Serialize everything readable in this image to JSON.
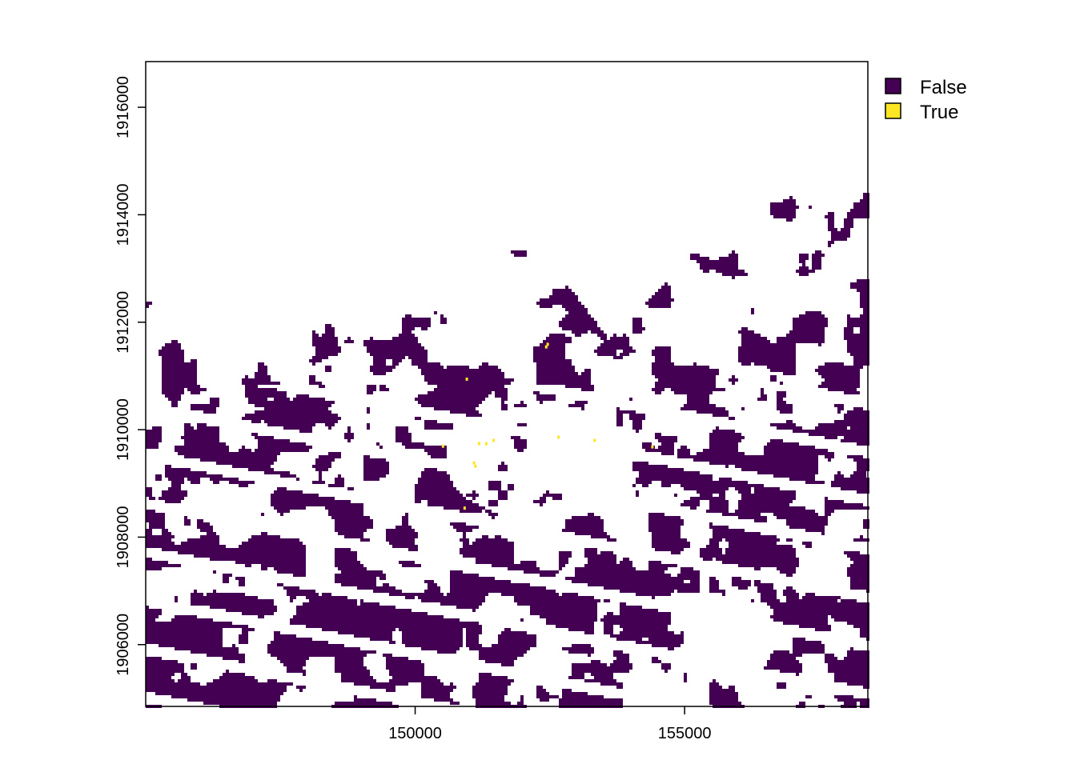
{
  "map": {
    "type": "raster",
    "x_ticks": [
      "150000",
      "155000"
    ],
    "y_ticks": [
      "1906000",
      "1908000",
      "1910000",
      "1912000",
      "1914000",
      "1916000"
    ],
    "legend": [
      {
        "label": "False",
        "color": "#440154"
      },
      {
        "label": "True",
        "color": "#FDE725"
      }
    ]
  },
  "chart_data": {
    "type": "heatmap",
    "xlim": [
      145000,
      158400
    ],
    "ylim": [
      1904850,
      1916850
    ],
    "x_ticks": [
      150000,
      155000
    ],
    "y_ticks": [
      1906000,
      1908000,
      1910000,
      1912000,
      1914000,
      1916000
    ],
    "categories": [
      "False",
      "True"
    ],
    "colors": {
      "False": "#440154",
      "True": "#FDE725"
    },
    "legend_position": "top-right",
    "grid": false
  }
}
